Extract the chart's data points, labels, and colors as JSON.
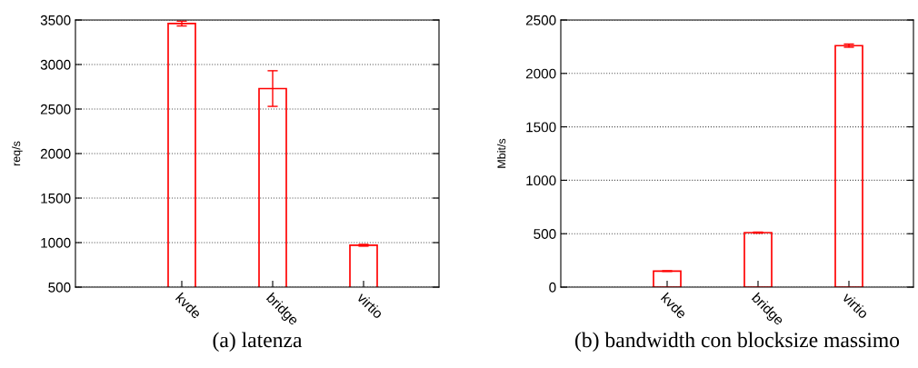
{
  "chart_data": [
    {
      "type": "bar",
      "title": "(a) latenza",
      "ylabel": "req/s",
      "categories": [
        "kvde",
        "bridge",
        "virtio"
      ],
      "values": [
        3460,
        2730,
        970
      ],
      "errors": [
        27,
        200,
        10
      ],
      "color": "#ff0000",
      "ylim": [
        500,
        3500
      ],
      "yticks": [
        500,
        1000,
        1500,
        2000,
        2500,
        3000,
        3500
      ],
      "grid": "y"
    },
    {
      "type": "bar",
      "title": "(b) bandwidth con blocksize massimo",
      "ylabel": "Mbit/s",
      "categories": [
        "kvde",
        "bridge",
        "virtio"
      ],
      "values": [
        150,
        510,
        2260
      ],
      "errors": [
        3,
        5,
        15
      ],
      "color": "#ff0000",
      "ylim": [
        0,
        2500
      ],
      "yticks": [
        0,
        500,
        1000,
        1500,
        2000,
        2500
      ],
      "grid": "y"
    }
  ]
}
